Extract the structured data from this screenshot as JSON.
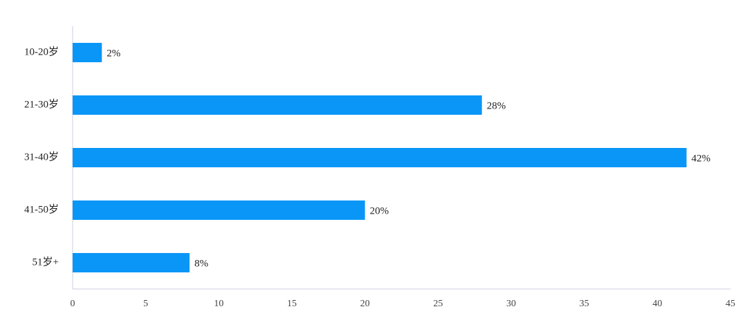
{
  "chart_data": {
    "type": "bar",
    "orientation": "horizontal",
    "categories": [
      "10-20岁",
      "21-30岁",
      "31-40岁",
      "41-50岁",
      "51岁+"
    ],
    "values": [
      2,
      28,
      42,
      20,
      8
    ],
    "value_labels": [
      "2%",
      "28%",
      "42%",
      "20%",
      "8%"
    ],
    "color": "#0a96f7",
    "xlim": [
      0,
      45
    ],
    "xticks": [
      0,
      5,
      10,
      15,
      20,
      25,
      30,
      35,
      40,
      45
    ],
    "grid": false
  }
}
